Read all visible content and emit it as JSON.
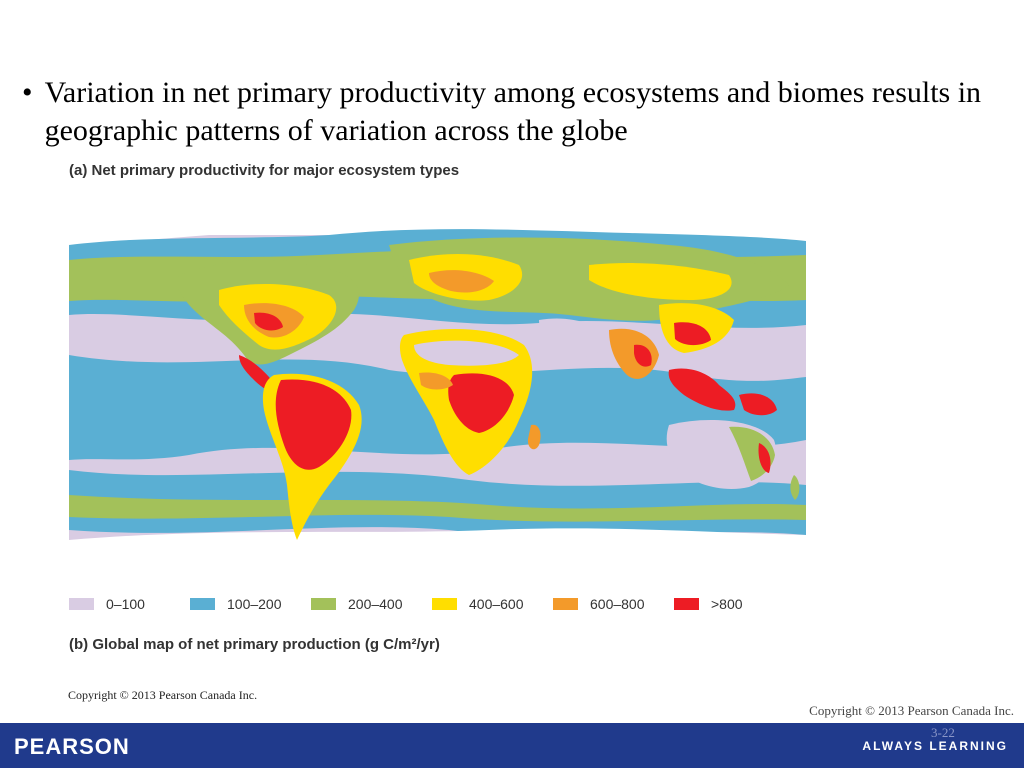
{
  "slide": {
    "bullet_symbol": "•",
    "bullet_text": "Variation in net primary productivity among ecosystems and biomes results in geographic patterns of variation across the globe"
  },
  "figure": {
    "title": "(a) Net primary productivity for major ecosystem types",
    "caption": "(b) Global map of net primary production (g C/m²/yr)",
    "copyright": "Copyright © 2013 Pearson Canada Inc.",
    "legend": [
      {
        "label": "0–100",
        "color": "#d9cce3"
      },
      {
        "label": "100–200",
        "color": "#5aafd3"
      },
      {
        "label": "200–400",
        "color": "#a3c15a"
      },
      {
        "label": "400–600",
        "color": "#ffde00"
      },
      {
        "label": "600–800",
        "color": "#f39a2a"
      },
      {
        "label": ">800",
        "color": "#ed1c24"
      }
    ]
  },
  "footer": {
    "copyright": "Copyright © 2013 Pearson Canada Inc.",
    "slide_number": "3-22",
    "brand": "PEARSON",
    "tagline": "ALWAYS LEARNING"
  }
}
